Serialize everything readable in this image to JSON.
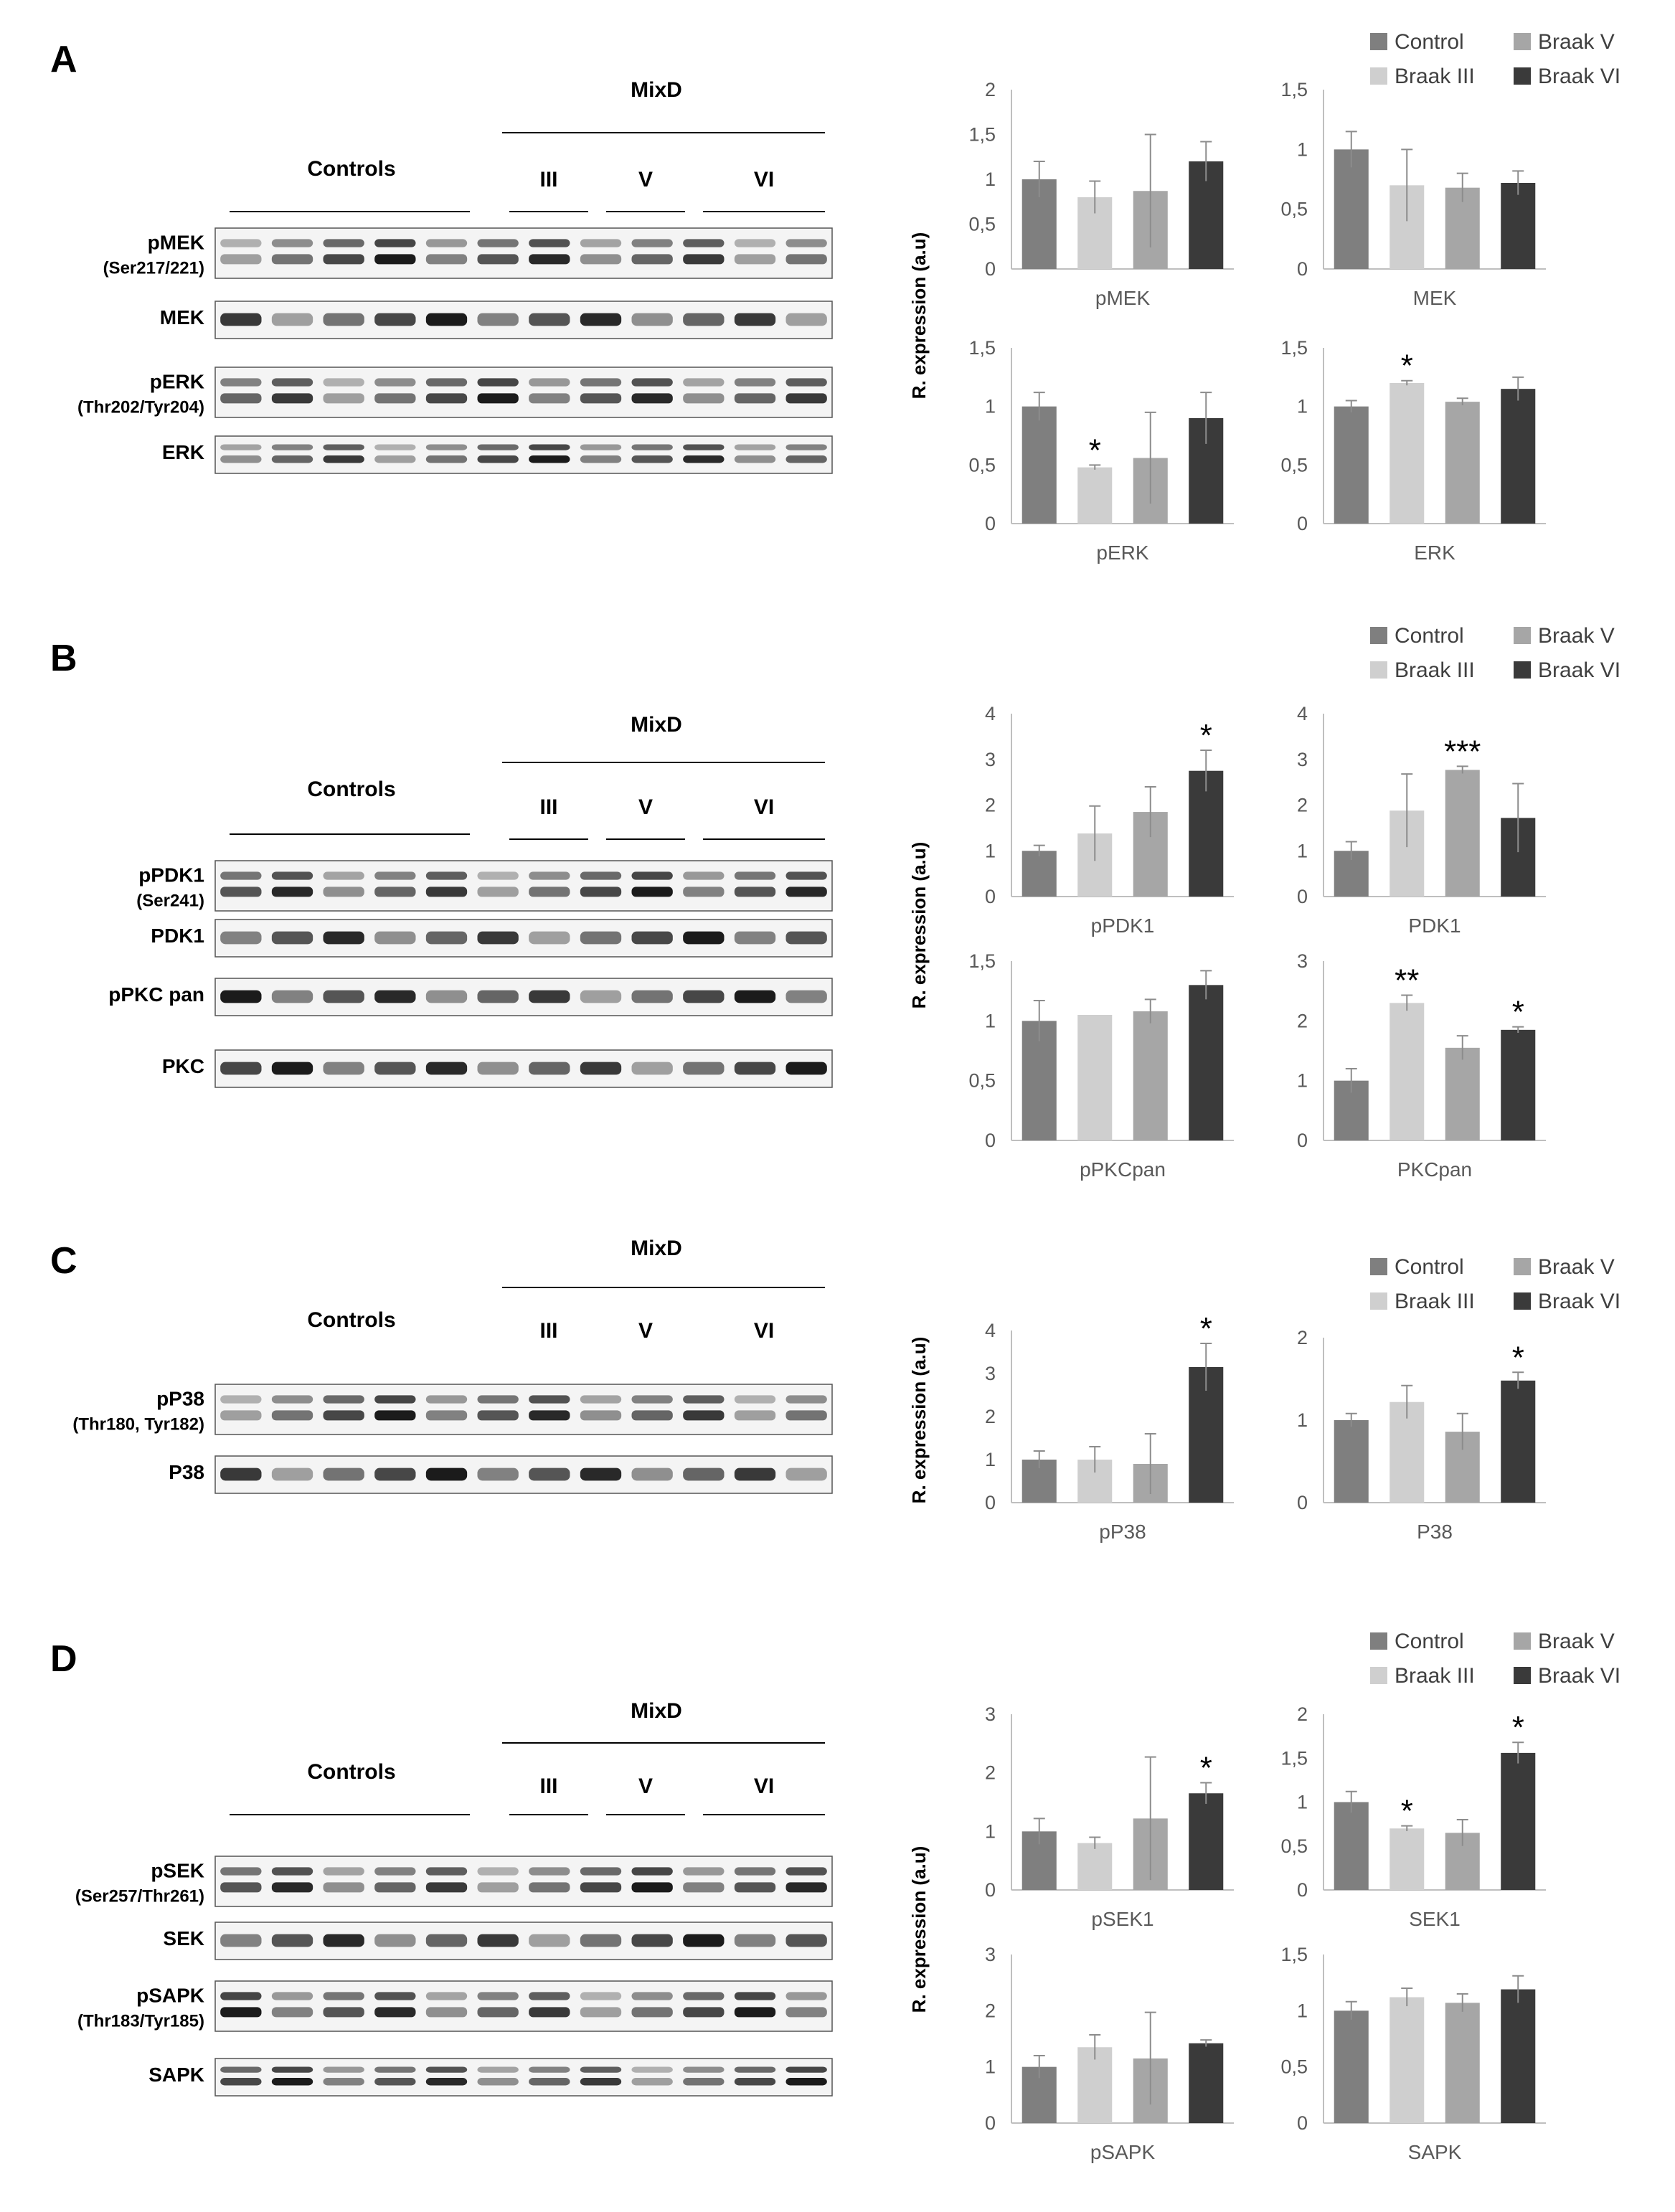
{
  "colors": {
    "control": "#7f7f7f",
    "braak_iii": "#cfcfcf",
    "braak_v": "#a6a6a6",
    "braak_vi": "#3a3a3a",
    "axis": "#bfbfbf",
    "error_bar": "#8c8c8c"
  },
  "panels": [
    {
      "letter": "A",
      "blot": {
        "controls_label": "Controls",
        "mixd_label": "MixD",
        "groups": [
          "III",
          "V",
          "VI"
        ],
        "rows": [
          {
            "name": "pMEK",
            "sub": "(Ser217/221)"
          },
          {
            "name": "MEK",
            "sub": ""
          },
          {
            "name": "pERK",
            "sub": "(Thr202/Tyr204)"
          },
          {
            "name": "ERK",
            "sub": ""
          }
        ]
      },
      "y_axis_label": "R. expression (a.u)",
      "legend": [
        "Control",
        "Braak V",
        "Braak III",
        "Braak VI"
      ]
    },
    {
      "letter": "B",
      "blot": {
        "controls_label": "Controls",
        "mixd_label": "MixD",
        "groups": [
          "III",
          "V",
          "VI"
        ],
        "rows": [
          {
            "name": "pPDK1",
            "sub": "(Ser241)"
          },
          {
            "name": "PDK1",
            "sub": ""
          },
          {
            "name": "pPKC pan",
            "sub": ""
          },
          {
            "name": "PKC",
            "sub": ""
          }
        ]
      },
      "y_axis_label": "R. expression (a.u)",
      "legend": [
        "Control",
        "Braak V",
        "Braak III",
        "Braak VI"
      ]
    },
    {
      "letter": "C",
      "blot": {
        "controls_label": "Controls",
        "mixd_label": "MixD",
        "groups": [
          "III",
          "V",
          "VI"
        ],
        "rows": [
          {
            "name": "pP38",
            "sub": "(Thr180, Tyr182)"
          },
          {
            "name": "P38",
            "sub": ""
          }
        ]
      },
      "y_axis_label": "R. expression (a.u)",
      "legend": [
        "Control",
        "Braak V",
        "Braak III",
        "Braak VI"
      ]
    },
    {
      "letter": "D",
      "blot": {
        "controls_label": "Controls",
        "mixd_label": "MixD",
        "groups": [
          "III",
          "V",
          "VI"
        ],
        "rows": [
          {
            "name": "pSEK",
            "sub": "(Ser257/Thr261)"
          },
          {
            "name": "SEK",
            "sub": ""
          },
          {
            "name": "pSAPK",
            "sub": "(Thr183/Tyr185)"
          },
          {
            "name": "SAPK",
            "sub": ""
          }
        ]
      },
      "y_axis_label": "R. expression (a.u)",
      "legend": [
        "Control",
        "Braak V",
        "Braak III",
        "Braak VI"
      ]
    }
  ],
  "chart_data": [
    {
      "type": "bar",
      "xlabel": "pMEK",
      "ylim": [
        0,
        2
      ],
      "ticks": [
        "0",
        "0,5",
        "1",
        "1,5",
        "2"
      ],
      "categories": [
        "Control",
        "Braak III",
        "Braak V",
        "Braak VI"
      ],
      "values": [
        1.0,
        0.8,
        0.87,
        1.2
      ],
      "errors": [
        0.2,
        0.18,
        0.63,
        0.22
      ],
      "significance": [
        "",
        "",
        "",
        ""
      ]
    },
    {
      "type": "bar",
      "xlabel": "MEK",
      "ylim": [
        0,
        1.5
      ],
      "ticks": [
        "0",
        "0,5",
        "1",
        "1,5"
      ],
      "categories": [
        "Control",
        "Braak III",
        "Braak V",
        "Braak VI"
      ],
      "values": [
        1.0,
        0.7,
        0.68,
        0.72
      ],
      "errors": [
        0.15,
        0.3,
        0.12,
        0.1
      ],
      "significance": [
        "",
        "",
        "",
        ""
      ]
    },
    {
      "type": "bar",
      "xlabel": "pERK",
      "ylim": [
        0,
        1.5
      ],
      "ticks": [
        "0",
        "0,5",
        "1",
        "1,5"
      ],
      "categories": [
        "Control",
        "Braak III",
        "Braak V",
        "Braak VI"
      ],
      "values": [
        1.0,
        0.48,
        0.56,
        0.9
      ],
      "errors": [
        0.12,
        0.02,
        0.39,
        0.22
      ],
      "significance": [
        "",
        "*",
        "",
        ""
      ]
    },
    {
      "type": "bar",
      "xlabel": "ERK",
      "ylim": [
        0,
        1.5
      ],
      "ticks": [
        "0",
        "0,5",
        "1",
        "1,5"
      ],
      "categories": [
        "Control",
        "Braak III",
        "Braak V",
        "Braak VI"
      ],
      "values": [
        1.0,
        1.2,
        1.04,
        1.15
      ],
      "errors": [
        0.05,
        0.02,
        0.03,
        0.1
      ],
      "significance": [
        "",
        "*",
        "",
        ""
      ]
    },
    {
      "type": "bar",
      "xlabel": "pPDK1",
      "ylim": [
        0,
        4
      ],
      "ticks": [
        "0",
        "1",
        "2",
        "3",
        "4"
      ],
      "categories": [
        "Control",
        "Braak III",
        "Braak V",
        "Braak VI"
      ],
      "values": [
        1.0,
        1.38,
        1.85,
        2.75
      ],
      "errors": [
        0.12,
        0.6,
        0.55,
        0.45
      ],
      "significance": [
        "",
        "",
        "",
        "*"
      ]
    },
    {
      "type": "bar",
      "xlabel": "PDK1",
      "ylim": [
        0,
        4
      ],
      "ticks": [
        "0",
        "1",
        "2",
        "3",
        "4"
      ],
      "categories": [
        "Control",
        "Braak III",
        "Braak V",
        "Braak VI"
      ],
      "values": [
        1.0,
        1.88,
        2.77,
        1.72
      ],
      "errors": [
        0.2,
        0.8,
        0.08,
        0.75
      ],
      "significance": [
        "",
        "",
        "***",
        ""
      ]
    },
    {
      "type": "bar",
      "xlabel": "pPKCpan",
      "ylim": [
        0,
        1.5
      ],
      "ticks": [
        "0",
        "0,5",
        "1",
        "1,5"
      ],
      "categories": [
        "Control",
        "Braak III",
        "Braak V",
        "Braak VI"
      ],
      "values": [
        1.0,
        1.05,
        1.08,
        1.3
      ],
      "errors": [
        0.17,
        0.0,
        0.1,
        0.12
      ],
      "significance": [
        "",
        "",
        "",
        ""
      ]
    },
    {
      "type": "bar",
      "xlabel": "PKCpan",
      "ylim": [
        0,
        3
      ],
      "ticks": [
        "0",
        "1",
        "2",
        "3"
      ],
      "categories": [
        "Control",
        "Braak III",
        "Braak V",
        "Braak VI"
      ],
      "values": [
        1.0,
        2.3,
        1.55,
        1.85
      ],
      "errors": [
        0.2,
        0.13,
        0.2,
        0.05
      ],
      "significance": [
        "",
        "**",
        "",
        "*"
      ]
    },
    {
      "type": "bar",
      "xlabel": "pP38",
      "ylim": [
        0,
        4
      ],
      "ticks": [
        "0",
        "1",
        "2",
        "3",
        "4"
      ],
      "categories": [
        "Control",
        "Braak III",
        "Braak V",
        "Braak VI"
      ],
      "values": [
        1.0,
        1.0,
        0.9,
        3.15
      ],
      "errors": [
        0.2,
        0.3,
        0.7,
        0.55
      ],
      "significance": [
        "",
        "",
        "",
        "*"
      ]
    },
    {
      "type": "bar",
      "xlabel": "P38",
      "ylim": [
        0,
        2
      ],
      "ticks": [
        "0",
        "1",
        "2"
      ],
      "categories": [
        "Control",
        "Braak III",
        "Braak V",
        "Braak VI"
      ],
      "values": [
        1.0,
        1.22,
        0.86,
        1.48
      ],
      "errors": [
        0.08,
        0.2,
        0.22,
        0.1
      ],
      "significance": [
        "",
        "",
        "",
        "*"
      ]
    },
    {
      "type": "bar",
      "xlabel": "pSEK1",
      "ylim": [
        0,
        3
      ],
      "ticks": [
        "0",
        "1",
        "2",
        "3"
      ],
      "categories": [
        "Control",
        "Braak III",
        "Braak V",
        "Braak VI"
      ],
      "values": [
        1.0,
        0.8,
        1.22,
        1.65
      ],
      "errors": [
        0.22,
        0.1,
        1.05,
        0.18
      ],
      "significance": [
        "",
        "",
        "",
        "*"
      ]
    },
    {
      "type": "bar",
      "xlabel": "SEK1",
      "ylim": [
        0,
        2
      ],
      "ticks": [
        "0",
        "0,5",
        "1",
        "1,5",
        "2"
      ],
      "categories": [
        "Control",
        "Braak III",
        "Braak V",
        "Braak VI"
      ],
      "values": [
        1.0,
        0.7,
        0.65,
        1.56
      ],
      "errors": [
        0.12,
        0.03,
        0.15,
        0.12
      ],
      "significance": [
        "",
        "*",
        "",
        "*"
      ]
    },
    {
      "type": "bar",
      "xlabel": "pSAPK",
      "ylim": [
        0,
        3
      ],
      "ticks": [
        "0",
        "1",
        "2",
        "3"
      ],
      "categories": [
        "Control",
        "Braak III",
        "Braak V",
        "Braak VI"
      ],
      "values": [
        1.0,
        1.35,
        1.15,
        1.42
      ],
      "errors": [
        0.2,
        0.22,
        0.82,
        0.06
      ],
      "significance": [
        "",
        "",
        "",
        ""
      ]
    },
    {
      "type": "bar",
      "xlabel": "SAPK",
      "ylim": [
        0,
        1.5
      ],
      "ticks": [
        "0",
        "0,5",
        "1",
        "1,5"
      ],
      "categories": [
        "Control",
        "Braak III",
        "Braak V",
        "Braak VI"
      ],
      "values": [
        1.0,
        1.12,
        1.07,
        1.19
      ],
      "errors": [
        0.08,
        0.08,
        0.08,
        0.12
      ],
      "significance": [
        "",
        "",
        "",
        ""
      ]
    }
  ]
}
